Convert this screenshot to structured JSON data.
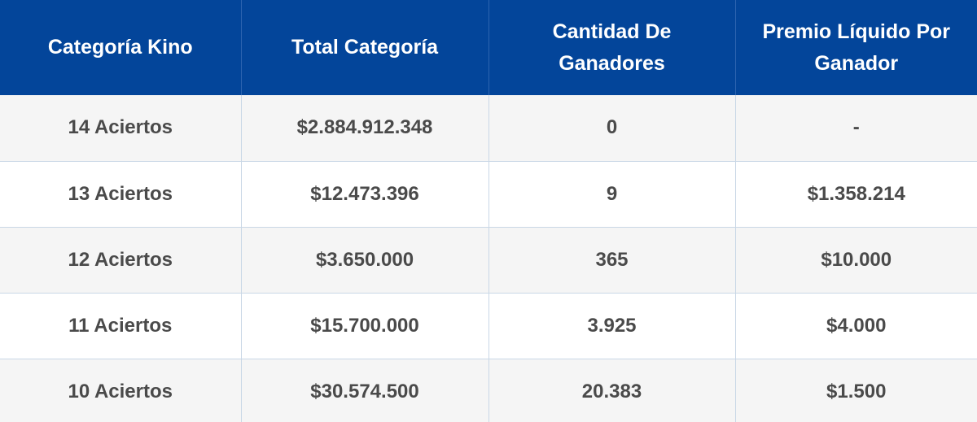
{
  "table": {
    "headers": [
      "Categoría Kino",
      "Total Categoría",
      "Cantidad De Ganadores",
      "Premio Líquido Por Ganador"
    ],
    "rows": [
      [
        "14 Aciertos",
        "$2.884.912.348",
        "0",
        "-"
      ],
      [
        "13 Aciertos",
        "$12.473.396",
        "9",
        "$1.358.214"
      ],
      [
        "12 Aciertos",
        "$3.650.000",
        "365",
        "$10.000"
      ],
      [
        "11 Aciertos",
        "$15.700.000",
        "3.925",
        "$4.000"
      ],
      [
        "10 Aciertos",
        "$30.574.500",
        "20.383",
        "$1.500"
      ]
    ]
  },
  "colors": {
    "header_background": "#03459a",
    "header_text": "#ffffff",
    "body_text": "#4a4a4a",
    "row_stripe": "#f5f5f5",
    "grid_line": "#c9d7e6"
  }
}
